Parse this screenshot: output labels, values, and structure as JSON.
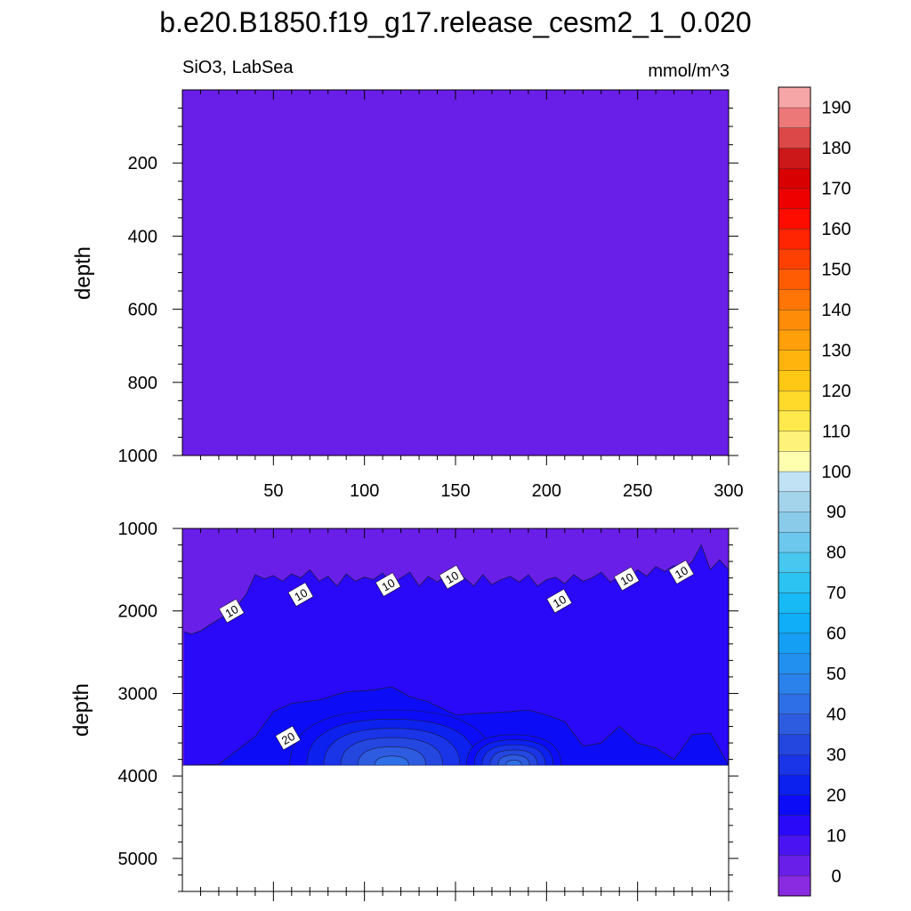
{
  "title": "b.e20.B1850.f19_g17.release_cesm2_1_0.020",
  "variable_region": "SiO3, LabSea",
  "units": "mmol/m^3",
  "chart_data": [
    {
      "type": "heatmap",
      "panel": "upper",
      "ylabel": "depth",
      "xlim": [
        0,
        300
      ],
      "ylim": [
        1000,
        0
      ],
      "x_ticks": [
        "50",
        "100",
        "150",
        "200",
        "250",
        "300"
      ],
      "y_ticks": [
        "200",
        "400",
        "600",
        "800",
        "1000"
      ],
      "field": "uniform ~5 (0-10 band) throughout",
      "fill_value": 5
    },
    {
      "type": "heatmap",
      "panel": "lower",
      "ylabel": "depth",
      "xlim": [
        0,
        300
      ],
      "ylim": [
        5400,
        1000
      ],
      "y_ticks": [
        "1000",
        "2000",
        "3000",
        "4000",
        "5000"
      ],
      "ocean_bottom_depth": 3870,
      "contour_10_depth": [
        [
          1,
          2250
        ],
        [
          5,
          2280
        ],
        [
          10,
          2240
        ],
        [
          15,
          2170
        ],
        [
          20,
          2100
        ],
        [
          25,
          2040
        ],
        [
          30,
          1940
        ],
        [
          35,
          1800
        ],
        [
          40,
          1560
        ],
        [
          45,
          1610
        ],
        [
          50,
          1570
        ],
        [
          55,
          1640
        ],
        [
          60,
          1550
        ],
        [
          65,
          1600
        ],
        [
          70,
          1500
        ],
        [
          75,
          1640
        ],
        [
          80,
          1580
        ],
        [
          85,
          1700
        ],
        [
          90,
          1550
        ],
        [
          95,
          1640
        ],
        [
          100,
          1590
        ],
        [
          105,
          1620
        ],
        [
          110,
          1540
        ],
        [
          115,
          1670
        ],
        [
          120,
          1600
        ],
        [
          125,
          1530
        ],
        [
          130,
          1700
        ],
        [
          135,
          1580
        ],
        [
          140,
          1650
        ],
        [
          145,
          1560
        ],
        [
          150,
          1610
        ],
        [
          155,
          1600
        ],
        [
          160,
          1700
        ],
        [
          165,
          1560
        ],
        [
          170,
          1680
        ],
        [
          175,
          1620
        ],
        [
          180,
          1580
        ],
        [
          185,
          1650
        ],
        [
          190,
          1560
        ],
        [
          195,
          1700
        ],
        [
          200,
          1620
        ],
        [
          205,
          1590
        ],
        [
          210,
          1670
        ],
        [
          215,
          1560
        ],
        [
          220,
          1640
        ],
        [
          225,
          1600
        ],
        [
          230,
          1530
        ],
        [
          235,
          1650
        ],
        [
          240,
          1590
        ],
        [
          245,
          1610
        ],
        [
          250,
          1500
        ],
        [
          255,
          1580
        ],
        [
          260,
          1460
        ],
        [
          265,
          1520
        ],
        [
          270,
          1450
        ],
        [
          275,
          1500
        ],
        [
          280,
          1400
        ],
        [
          285,
          1200
        ],
        [
          290,
          1500
        ],
        [
          295,
          1380
        ],
        [
          300,
          1500
        ]
      ],
      "contour_20_depth": [
        [
          0,
          3870
        ],
        [
          20,
          3860
        ],
        [
          40,
          3520
        ],
        [
          50,
          3220
        ],
        [
          60,
          3120
        ],
        [
          75,
          3080
        ],
        [
          90,
          2980
        ],
        [
          105,
          2960
        ],
        [
          115,
          2920
        ],
        [
          125,
          3040
        ],
        [
          135,
          3100
        ],
        [
          150,
          3260
        ],
        [
          165,
          3240
        ],
        [
          180,
          3220
        ],
        [
          190,
          3200
        ],
        [
          200,
          3260
        ],
        [
          210,
          3340
        ],
        [
          220,
          3640
        ],
        [
          230,
          3600
        ],
        [
          240,
          3400
        ],
        [
          250,
          3600
        ],
        [
          260,
          3660
        ],
        [
          270,
          3800
        ],
        [
          280,
          3500
        ],
        [
          290,
          3480
        ],
        [
          300,
          3870
        ]
      ],
      "inner_max_contours": [
        25,
        30,
        35,
        40,
        45,
        50
      ],
      "contour_labels": [
        {
          "text": "10",
          "x": 27,
          "depth": 2000
        },
        {
          "text": "10",
          "x": 65,
          "depth": 1800
        },
        {
          "text": "10",
          "x": 113,
          "depth": 1680
        },
        {
          "text": "10",
          "x": 148,
          "depth": 1590
        },
        {
          "text": "10",
          "x": 207,
          "depth": 1880
        },
        {
          "text": "10",
          "x": 244,
          "depth": 1610
        },
        {
          "text": "10",
          "x": 274,
          "depth": 1530
        },
        {
          "text": "20",
          "x": 58,
          "depth": 3540
        }
      ]
    }
  ],
  "colorbar": {
    "levels": [
      "0",
      "10",
      "20",
      "30",
      "40",
      "50",
      "60",
      "70",
      "80",
      "90",
      "100",
      "110",
      "120",
      "130",
      "140",
      "150",
      "160",
      "170",
      "180",
      "190"
    ],
    "colors": [
      "#8a2be2",
      "#6a1fe8",
      "#4a14f2",
      "#2a08f8",
      "#0c0cf6",
      "#0c20ee",
      "#1a34e8",
      "#2447e0",
      "#2d5ce0",
      "#2e6ee6",
      "#2a82ea",
      "#2290ee",
      "#159ff4",
      "#10adf8",
      "#18baf6",
      "#2cc2f2",
      "#48c7f0",
      "#6dc8ee",
      "#8acbea",
      "#a4d3ec",
      "#c0e2f4",
      "#ffffb0",
      "#fff27a",
      "#ffe94c",
      "#ffda2a",
      "#ffc815",
      "#ffb40d",
      "#ffa00a",
      "#ff8c08",
      "#ff7606",
      "#ff5c04",
      "#ff4003",
      "#ff2402",
      "#ff0c00",
      "#ee0000",
      "#d80000",
      "#cc1818",
      "#dc4848",
      "#ec7878",
      "#f6a6a6"
    ]
  }
}
